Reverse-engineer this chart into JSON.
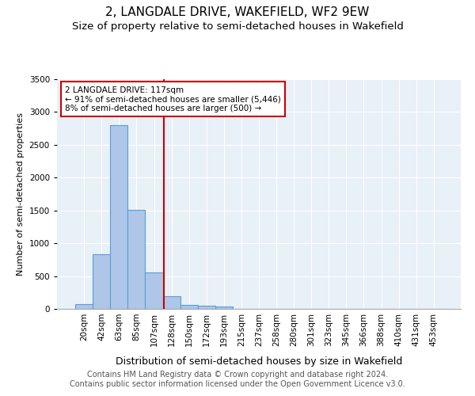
{
  "title1": "2, LANGDALE DRIVE, WAKEFIELD, WF2 9EW",
  "title2": "Size of property relative to semi-detached houses in Wakefield",
  "xlabel": "Distribution of semi-detached houses by size in Wakefield",
  "ylabel": "Number of semi-detached properties",
  "footnote1": "Contains HM Land Registry data © Crown copyright and database right 2024.",
  "footnote2": "Contains public sector information licensed under the Open Government Licence v3.0.",
  "bin_labels": [
    "20sqm",
    "42sqm",
    "63sqm",
    "85sqm",
    "107sqm",
    "128sqm",
    "150sqm",
    "172sqm",
    "193sqm",
    "215sqm",
    "237sqm",
    "258sqm",
    "280sqm",
    "301sqm",
    "323sqm",
    "345sqm",
    "366sqm",
    "388sqm",
    "410sqm",
    "431sqm",
    "453sqm"
  ],
  "bar_values": [
    75,
    830,
    2800,
    1510,
    550,
    190,
    65,
    50,
    35,
    0,
    0,
    0,
    0,
    0,
    0,
    0,
    0,
    0,
    0,
    0,
    0
  ],
  "bar_color": "#aec6e8",
  "bar_edge_color": "#5a9fd4",
  "vline_x": 4.55,
  "vline_color": "#cc0000",
  "annotation_text": "2 LANGDALE DRIVE: 117sqm\n← 91% of semi-detached houses are smaller (5,446)\n8% of semi-detached houses are larger (500) →",
  "annotation_box_color": "white",
  "annotation_box_edge": "#cc0000",
  "ylim": [
    0,
    3500
  ],
  "yticks": [
    0,
    500,
    1000,
    1500,
    2000,
    2500,
    3000,
    3500
  ],
  "bg_color": "#e8f0f8",
  "title1_fontsize": 11,
  "title2_fontsize": 9.5,
  "xlabel_fontsize": 9,
  "ylabel_fontsize": 8,
  "footnote_fontsize": 7,
  "tick_fontsize": 7.5,
  "annotation_fontsize": 7.5
}
